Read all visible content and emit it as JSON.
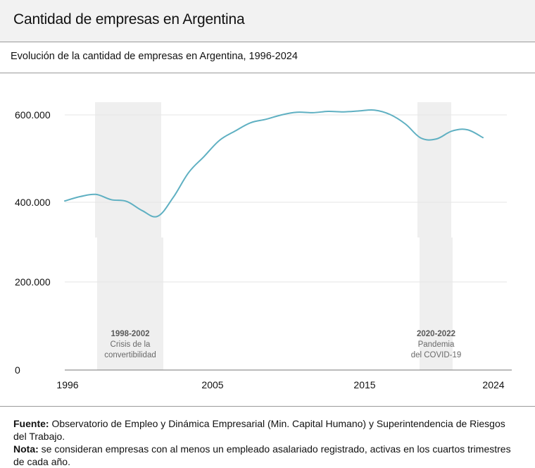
{
  "header": {
    "title": "Cantidad de empresas en Argentina"
  },
  "subtitle": "Evolución de la cantidad de empresas en Argentina, 1996-2024",
  "footer": {
    "fuente_label": "Fuente:",
    "fuente_text": " Observatorio de Empleo y Dinámica Empresarial (Min. Capital Humano) y Superintendencia de Riesgos del Trabajo.",
    "nota_label": "Nota:",
    "nota_text": " se consideran empresas con al menos un empleado asalariado registrado, activas en los cuartos trimestres de cada año."
  },
  "colors": {
    "line": "#5fb0c2",
    "band": "#efefef",
    "grid": "#e6e6e6",
    "axis": "#777777"
  },
  "chart_data": {
    "type": "line",
    "title": "Evolución de la cantidad de empresas en Argentina, 1996-2024",
    "xlabel": "",
    "ylabel": "",
    "grid": true,
    "legend": "none",
    "x_ticks": [
      "1996",
      "2005",
      "2015",
      "2024"
    ],
    "xlim": [
      1996,
      2024
    ],
    "y_axis_broken": true,
    "y_panels": [
      {
        "name": "upper",
        "range": [
          319000,
          630000
        ],
        "ticks": [
          400000,
          600000
        ],
        "tick_labels": [
          "400.000",
          "600.000"
        ]
      },
      {
        "name": "lower",
        "range": [
          0,
          300000
        ],
        "ticks": [
          0,
          200000
        ],
        "tick_labels": [
          "0",
          "200.000"
        ]
      }
    ],
    "series": [
      {
        "name": "Cantidad de empresas",
        "x": [
          1996,
          1997,
          1998,
          1999,
          2000,
          2001,
          2002,
          2003,
          2004,
          2005,
          2006,
          2007,
          2008,
          2009,
          2010,
          2011,
          2012,
          2013,
          2014,
          2015,
          2016,
          2017,
          2018,
          2019,
          2020,
          2021,
          2022,
          2023
        ],
        "values": [
          403000,
          413000,
          418000,
          406000,
          402000,
          381000,
          368000,
          411000,
          468000,
          505000,
          542000,
          563000,
          582000,
          590000,
          600000,
          606000,
          605000,
          608000,
          607000,
          609000,
          611000,
          601000,
          579000,
          547000,
          545000,
          563000,
          566000,
          548000
        ]
      }
    ],
    "annotations": [
      {
        "from": 1998,
        "to": 2002,
        "lines": [
          "1998-2002",
          "Crisis de la",
          "convertibilidad"
        ]
      },
      {
        "from": 2020,
        "to": 2022,
        "lines": [
          "2020-2022",
          "Pandemia",
          "del COVID-19"
        ]
      }
    ]
  }
}
